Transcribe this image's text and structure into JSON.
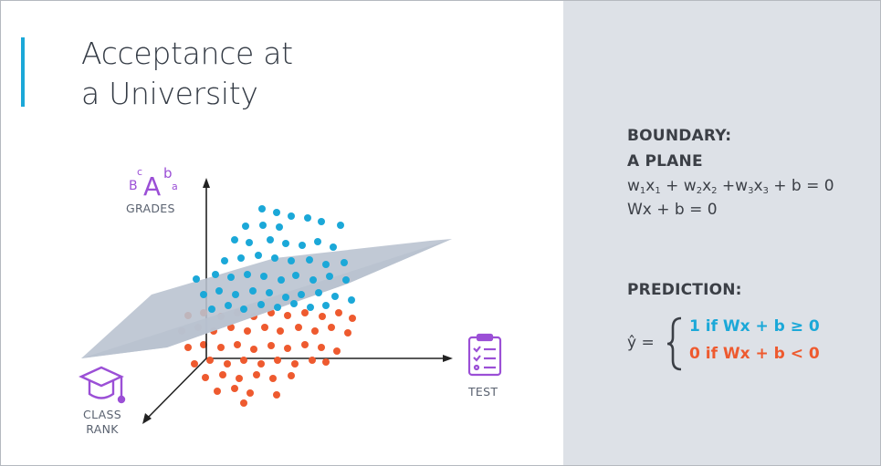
{
  "title": {
    "line1": "Acceptance at",
    "line2": "a University"
  },
  "axes": {
    "grades": "GRADES",
    "test": "TEST",
    "class_rank_line1": "CLASS",
    "class_rank_line2": "RANK"
  },
  "icons": {
    "grades": "grades-letters-icon",
    "test": "test-checklist-icon",
    "class_rank": "graduation-cap-icon"
  },
  "boundary": {
    "heading1": "BOUNDARY:",
    "heading2": "A PLANE",
    "eq1": {
      "w1": "w",
      "s1": "1",
      "x1": "x",
      "t1": "1",
      "plus1": " + ",
      "w2": "w",
      "s2": "2",
      "x2": "x",
      "t2": "2",
      "plus2": " +",
      "w3": "w",
      "s3": "3",
      "x3": "x",
      "t3": "3",
      "rest": " + b = 0"
    },
    "eq2": "Wx + b = 0"
  },
  "prediction": {
    "heading": "PREDICTION:",
    "yhat": "ŷ =",
    "case1": "1 if Wx + b ≥ 0",
    "case2": "0 if Wx + b < 0"
  },
  "colors": {
    "accent": "#1ba8d8",
    "positive": "#1ba8d8",
    "negative": "#ee5a2f",
    "icon": "#9b4fd6",
    "plane": "#b8c2cf",
    "panel": "#dde1e7"
  }
}
